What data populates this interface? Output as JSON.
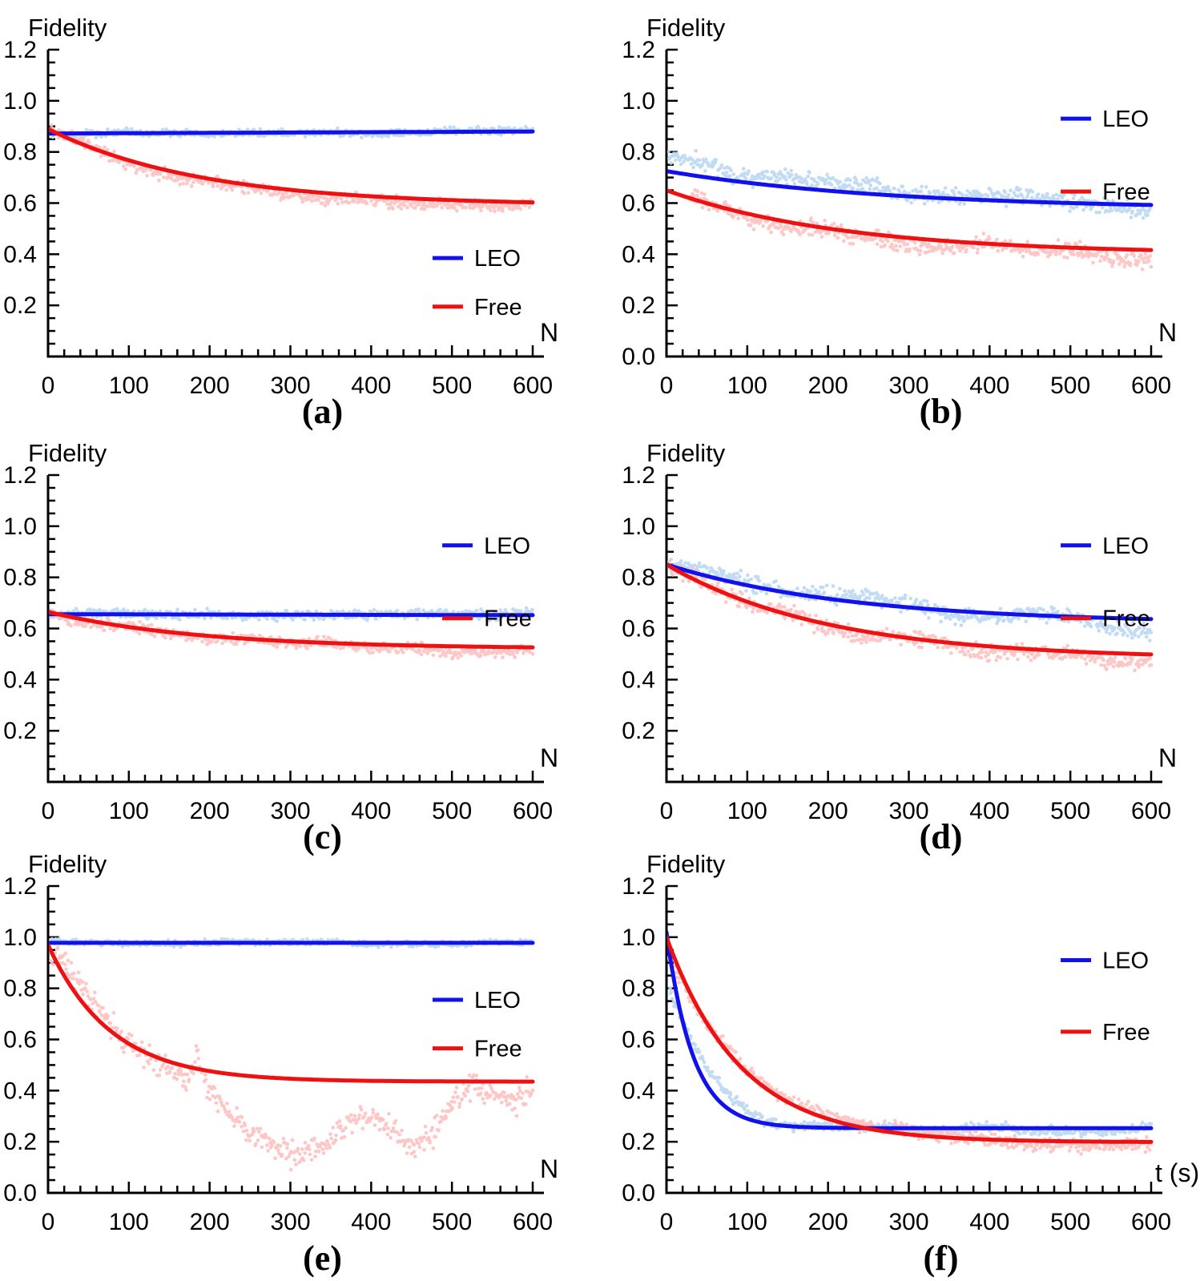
{
  "figure": {
    "description": "2x3 grid of fidelity decay plots comparing LEO vs Free evolution",
    "ylabel": "Fidelity",
    "legend_labels": {
      "leo": "LEO",
      "free": "Free"
    },
    "colors": {
      "leo_line": "#1111ee",
      "free_line": "#ee1111",
      "leo_scatter": "#bcd9f5",
      "free_scatter": "#ffc2c2",
      "axis": "#000000",
      "text": "#000000"
    }
  },
  "chart_data": [
    {
      "id": "a",
      "panel_label": "(a)",
      "type": "line",
      "title": "",
      "ylabel": "Fidelity",
      "xlabel": "N",
      "x_range": [
        0,
        600
      ],
      "y_axis_range": [
        0,
        1.2
      ],
      "x_ticks": [
        0,
        100,
        200,
        300,
        400,
        500,
        600
      ],
      "y_ticks": [
        0.2,
        0.4,
        0.6,
        0.8,
        1.0,
        1.2
      ],
      "show_zero_label": false,
      "x_minor_step": 20,
      "y_minor_step": 0.05,
      "grid": false,
      "legend_position": "middle-right",
      "legend_x": 476,
      "legend_y": [
        0.385,
        0.195
      ],
      "series": [
        {
          "name": "LEO",
          "color_key": "leo",
          "model": {
            "type": "linear",
            "y0": 0.872,
            "y1": 0.88
          },
          "x_samples": [
            0,
            100,
            200,
            300,
            400,
            500,
            600
          ],
          "y_samples": [
            0.872,
            0.873,
            0.875,
            0.876,
            0.877,
            0.879,
            0.88
          ],
          "scatter": {
            "amp": 0.012,
            "wander": 0.008
          }
        },
        {
          "name": "Free",
          "color_key": "free",
          "model": {
            "type": "exp",
            "y0": 0.89,
            "yinf": 0.59,
            "tau": 190
          },
          "x_samples": [
            0,
            100,
            200,
            300,
            400,
            500,
            600
          ],
          "y_samples": [
            0.89,
            0.767,
            0.695,
            0.652,
            0.627,
            0.612,
            0.603
          ],
          "scatter": {
            "amp": 0.02,
            "wander": 0.014,
            "offset_anchors": [
              [
                0,
                0
              ],
              [
                300,
                -0.012
              ],
              [
                600,
                -0.008
              ]
            ]
          }
        }
      ]
    },
    {
      "id": "b",
      "panel_label": "(b)",
      "type": "line",
      "title": "",
      "ylabel": "Fidelity",
      "xlabel": "N",
      "x_range": [
        0,
        600
      ],
      "y_axis_range": [
        0,
        1.2
      ],
      "x_ticks": [
        0,
        100,
        200,
        300,
        400,
        500,
        600
      ],
      "y_ticks": [
        0.0,
        0.2,
        0.4,
        0.6,
        0.8,
        1.0,
        1.2
      ],
      "show_zero_label": true,
      "x_minor_step": 20,
      "y_minor_step": 0.05,
      "grid": false,
      "legend_position": "top-right",
      "legend_x": 488,
      "legend_y": [
        0.93,
        0.645
      ],
      "series": [
        {
          "name": "LEO",
          "color_key": "leo",
          "model": {
            "type": "exp",
            "y0": 0.725,
            "yinf": 0.575,
            "tau": 280
          },
          "x_samples": [
            0,
            100,
            200,
            300,
            400,
            500,
            600
          ],
          "y_samples": [
            0.725,
            0.68,
            0.648,
            0.626,
            0.611,
            0.6,
            0.593
          ],
          "scatter": {
            "amp": 0.028,
            "wander": 0.02,
            "offset_anchors": [
              [
                0,
                0.04
              ],
              [
                100,
                0.028
              ],
              [
                200,
                0.018
              ],
              [
                300,
                0.012
              ],
              [
                450,
                0.002
              ],
              [
                600,
                -0.01
              ]
            ]
          }
        },
        {
          "name": "Free",
          "color_key": "free",
          "model": {
            "type": "exp",
            "y0": 0.65,
            "yinf": 0.4,
            "tau": 220
          },
          "x_samples": [
            0,
            100,
            200,
            300,
            400,
            500,
            600
          ],
          "y_samples": [
            0.65,
            0.559,
            0.501,
            0.464,
            0.441,
            0.426,
            0.416
          ],
          "scatter": {
            "amp": 0.028,
            "wander": 0.02,
            "x_start": 30,
            "offset_anchors": [
              [
                30,
                0
              ],
              [
                100,
                -0.012
              ],
              [
                300,
                -0.012
              ],
              [
                600,
                -0.022
              ]
            ]
          }
        }
      ]
    },
    {
      "id": "c",
      "panel_label": "(c)",
      "type": "line",
      "title": "",
      "ylabel": "Fidelity",
      "xlabel": "N",
      "x_range": [
        0,
        600
      ],
      "y_axis_range": [
        0,
        1.2
      ],
      "x_ticks": [
        0,
        100,
        200,
        300,
        400,
        500,
        600
      ],
      "y_ticks": [
        0.2,
        0.4,
        0.6,
        0.8,
        1.0,
        1.2
      ],
      "show_zero_label": false,
      "x_minor_step": 20,
      "y_minor_step": 0.05,
      "grid": false,
      "legend_position": "top-right",
      "legend_x": 488,
      "legend_y": [
        0.925,
        0.64
      ],
      "series": [
        {
          "name": "LEO",
          "color_key": "leo",
          "model": {
            "type": "linear",
            "y0": 0.656,
            "y1": 0.652
          },
          "x_samples": [
            0,
            100,
            200,
            300,
            400,
            500,
            600
          ],
          "y_samples": [
            0.656,
            0.655,
            0.655,
            0.654,
            0.653,
            0.653,
            0.652
          ],
          "scatter": {
            "amp": 0.016,
            "wander": 0.01
          }
        },
        {
          "name": "Free",
          "color_key": "free",
          "model": {
            "type": "exp",
            "y0": 0.665,
            "yinf": 0.52,
            "tau": 190
          },
          "x_samples": [
            0,
            100,
            200,
            300,
            400,
            500,
            600
          ],
          "y_samples": [
            0.665,
            0.606,
            0.571,
            0.55,
            0.538,
            0.53,
            0.526
          ],
          "scatter": {
            "amp": 0.018,
            "wander": 0.012,
            "offset_anchors": [
              [
                0,
                0
              ],
              [
                300,
                -0.008
              ],
              [
                600,
                -0.014
              ]
            ]
          }
        }
      ]
    },
    {
      "id": "d",
      "panel_label": "(d)",
      "type": "line",
      "title": "",
      "ylabel": "Fidelity",
      "xlabel": "N",
      "x_range": [
        0,
        600
      ],
      "y_axis_range": [
        0,
        1.2
      ],
      "x_ticks": [
        0,
        100,
        200,
        300,
        400,
        500,
        600
      ],
      "y_ticks": [
        0.2,
        0.4,
        0.6,
        0.8,
        1.0,
        1.2
      ],
      "show_zero_label": false,
      "x_minor_step": 20,
      "y_minor_step": 0.05,
      "grid": false,
      "legend_position": "top-right",
      "legend_x": 488,
      "legend_y": [
        0.925,
        0.64
      ],
      "series": [
        {
          "name": "LEO",
          "color_key": "leo",
          "model": {
            "type": "exp",
            "y0": 0.85,
            "yinf": 0.62,
            "tau": 230
          },
          "x_samples": [
            0,
            100,
            200,
            300,
            400,
            500,
            600
          ],
          "y_samples": [
            0.85,
            0.769,
            0.717,
            0.683,
            0.661,
            0.646,
            0.637
          ],
          "scatter": {
            "amp": 0.027,
            "wander": 0.02,
            "offset_anchors": [
              [
                0,
                0.012
              ],
              [
                150,
                0.018
              ],
              [
                300,
                0.005
              ],
              [
                450,
                -0.01
              ],
              [
                600,
                -0.035
              ]
            ]
          }
        },
        {
          "name": "Free",
          "color_key": "free",
          "model": {
            "type": "exp",
            "y0": 0.85,
            "yinf": 0.48,
            "tau": 200
          },
          "x_samples": [
            0,
            100,
            200,
            300,
            400,
            500,
            600
          ],
          "y_samples": [
            0.85,
            0.704,
            0.616,
            0.563,
            0.53,
            0.51,
            0.498
          ],
          "scatter": {
            "amp": 0.027,
            "wander": 0.02,
            "offset_anchors": [
              [
                0,
                0.005
              ],
              [
                200,
                0
              ],
              [
                400,
                -0.01
              ],
              [
                600,
                -0.03
              ]
            ]
          }
        }
      ]
    },
    {
      "id": "e",
      "panel_label": "(e)",
      "type": "line",
      "title": "",
      "ylabel": "Fidelity",
      "xlabel": "N",
      "x_range": [
        0,
        600
      ],
      "y_axis_range": [
        0,
        1.2
      ],
      "x_ticks": [
        0,
        100,
        200,
        300,
        400,
        500,
        600
      ],
      "y_ticks": [
        0.0,
        0.2,
        0.4,
        0.6,
        0.8,
        1.0,
        1.2
      ],
      "show_zero_label": true,
      "x_minor_step": 20,
      "y_minor_step": 0.05,
      "grid": false,
      "legend_position": "middle-right",
      "legend_x": 476,
      "legend_y": [
        0.755,
        0.565
      ],
      "series": [
        {
          "name": "LEO",
          "color_key": "leo",
          "model": {
            "type": "flat",
            "y0": 0.978
          },
          "x_samples": [
            0,
            100,
            200,
            300,
            400,
            500,
            600
          ],
          "y_samples": [
            0.978,
            0.978,
            0.978,
            0.978,
            0.978,
            0.978,
            0.978
          ],
          "scatter": {
            "amp": 0.01,
            "wander": 0.005
          }
        },
        {
          "name": "Free",
          "color_key": "free",
          "model": {
            "type": "exp",
            "y0": 0.97,
            "yinf": 0.435,
            "tau": 78
          },
          "x_samples": [
            0,
            100,
            200,
            300,
            400,
            500,
            600
          ],
          "y_samples": [
            0.97,
            0.583,
            0.476,
            0.446,
            0.438,
            0.436,
            0.435
          ],
          "scatter": {
            "amp": 0.042,
            "wander": 0.022,
            "anchors": [
              [
                0,
                0.96
              ],
              [
                25,
                0.87
              ],
              [
                50,
                0.78
              ],
              [
                75,
                0.68
              ],
              [
                100,
                0.6
              ],
              [
                125,
                0.53
              ],
              [
                150,
                0.46
              ],
              [
                170,
                0.43
              ],
              [
                185,
                0.52
              ],
              [
                200,
                0.4
              ],
              [
                225,
                0.3
              ],
              [
                250,
                0.24
              ],
              [
                275,
                0.18
              ],
              [
                300,
                0.14
              ],
              [
                325,
                0.16
              ],
              [
                350,
                0.22
              ],
              [
                375,
                0.28
              ],
              [
                400,
                0.31
              ],
              [
                425,
                0.25
              ],
              [
                450,
                0.17
              ],
              [
                475,
                0.23
              ],
              [
                500,
                0.37
              ],
              [
                525,
                0.43
              ],
              [
                550,
                0.38
              ],
              [
                575,
                0.34
              ],
              [
                600,
                0.4
              ]
            ]
          }
        }
      ]
    },
    {
      "id": "f",
      "panel_label": "(f)",
      "type": "line",
      "title": "",
      "ylabel": "Fidelity",
      "xlabel": "t (s)",
      "x_range": [
        0,
        600
      ],
      "y_axis_range": [
        0,
        1.2
      ],
      "x_ticks": [
        0,
        100,
        200,
        300,
        400,
        500,
        600
      ],
      "y_ticks": [
        0.0,
        0.2,
        0.4,
        0.6,
        0.8,
        1.0,
        1.2
      ],
      "show_zero_label": true,
      "x_minor_step": 20,
      "y_minor_step": 0.05,
      "grid": false,
      "legend_position": "top-right",
      "legend_x": 488,
      "legend_y": [
        0.91,
        0.63
      ],
      "series": [
        {
          "name": "LEO",
          "color_key": "leo",
          "model": {
            "type": "exp",
            "y0": 1.02,
            "yinf": 0.253,
            "tau": 33
          },
          "x_samples": [
            0,
            100,
            200,
            300,
            400,
            500,
            600
          ],
          "y_samples": [
            1.02,
            0.29,
            0.255,
            0.253,
            0.253,
            0.253,
            0.253
          ],
          "scatter": {
            "amp": 0.016,
            "wander": 0.011,
            "x_start": 4,
            "anchors": [
              [
                0,
                0.8
              ],
              [
                15,
                0.7
              ],
              [
                30,
                0.6
              ],
              [
                50,
                0.48
              ],
              [
                75,
                0.38
              ],
              [
                100,
                0.31
              ],
              [
                125,
                0.275
              ],
              [
                150,
                0.262
              ],
              [
                200,
                0.258
              ],
              [
                250,
                0.252
              ],
              [
                300,
                0.253
              ],
              [
                400,
                0.252
              ],
              [
                500,
                0.248
              ],
              [
                600,
                0.25
              ]
            ]
          }
        },
        {
          "name": "Free",
          "color_key": "free",
          "model": {
            "type": "exp",
            "y0": 1.0,
            "yinf": 0.198,
            "tau": 92
          },
          "x_samples": [
            0,
            100,
            200,
            300,
            400,
            500,
            600
          ],
          "y_samples": [
            1.0,
            0.468,
            0.289,
            0.229,
            0.208,
            0.201,
            0.199
          ],
          "scatter": {
            "amp": 0.022,
            "wander": 0.014,
            "anchors": [
              [
                0,
                0.93
              ],
              [
                25,
                0.8
              ],
              [
                50,
                0.67
              ],
              [
                75,
                0.57
              ],
              [
                100,
                0.48
              ],
              [
                125,
                0.42
              ],
              [
                150,
                0.37
              ],
              [
                175,
                0.345
              ],
              [
                200,
                0.315
              ],
              [
                250,
                0.27
              ],
              [
                300,
                0.245
              ],
              [
                350,
                0.225
              ],
              [
                400,
                0.215
              ],
              [
                450,
                0.195
              ],
              [
                500,
                0.185
              ],
              [
                550,
                0.178
              ],
              [
                600,
                0.18
              ]
            ]
          }
        }
      ]
    }
  ]
}
